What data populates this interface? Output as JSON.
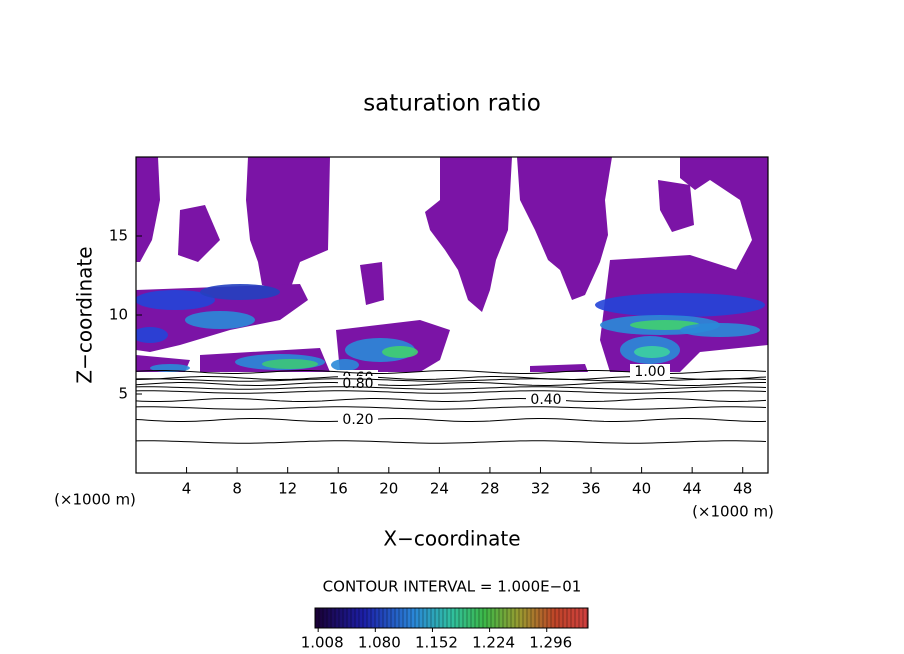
{
  "chart_data": {
    "type": "contour",
    "title": "saturation ratio",
    "x_label": "X−coordinate",
    "y_label": "Z−coordinate",
    "x_unit": "(×1000 m)",
    "y_unit": "(×1000 m)",
    "xlim": [
      0,
      50
    ],
    "xticks": [
      4,
      8,
      12,
      16,
      20,
      24,
      28,
      32,
      36,
      40,
      44,
      48
    ],
    "ylim": [
      0,
      20
    ],
    "yticks": [
      5,
      10,
      15
    ],
    "contours": [
      {
        "value": 0.2,
        "label": "0.20"
      },
      {
        "value": 0.4,
        "label": "0.40"
      },
      {
        "value": 0.6,
        "label": "0.60"
      },
      {
        "value": 0.8,
        "label": "0.80"
      },
      {
        "value": 1.0,
        "label": "1.00"
      }
    ],
    "fill_color": "#7b14a6",
    "interval_text": "CONTOUR INTERVAL = 1.000E−01",
    "colorbar": {
      "lim": [
        1.004,
        1.348
      ],
      "ticks": [
        1.008,
        {
          "value": 1.08,
          "label": "1.080"
        },
        1.152,
        1.224,
        1.296
      ]
    }
  }
}
